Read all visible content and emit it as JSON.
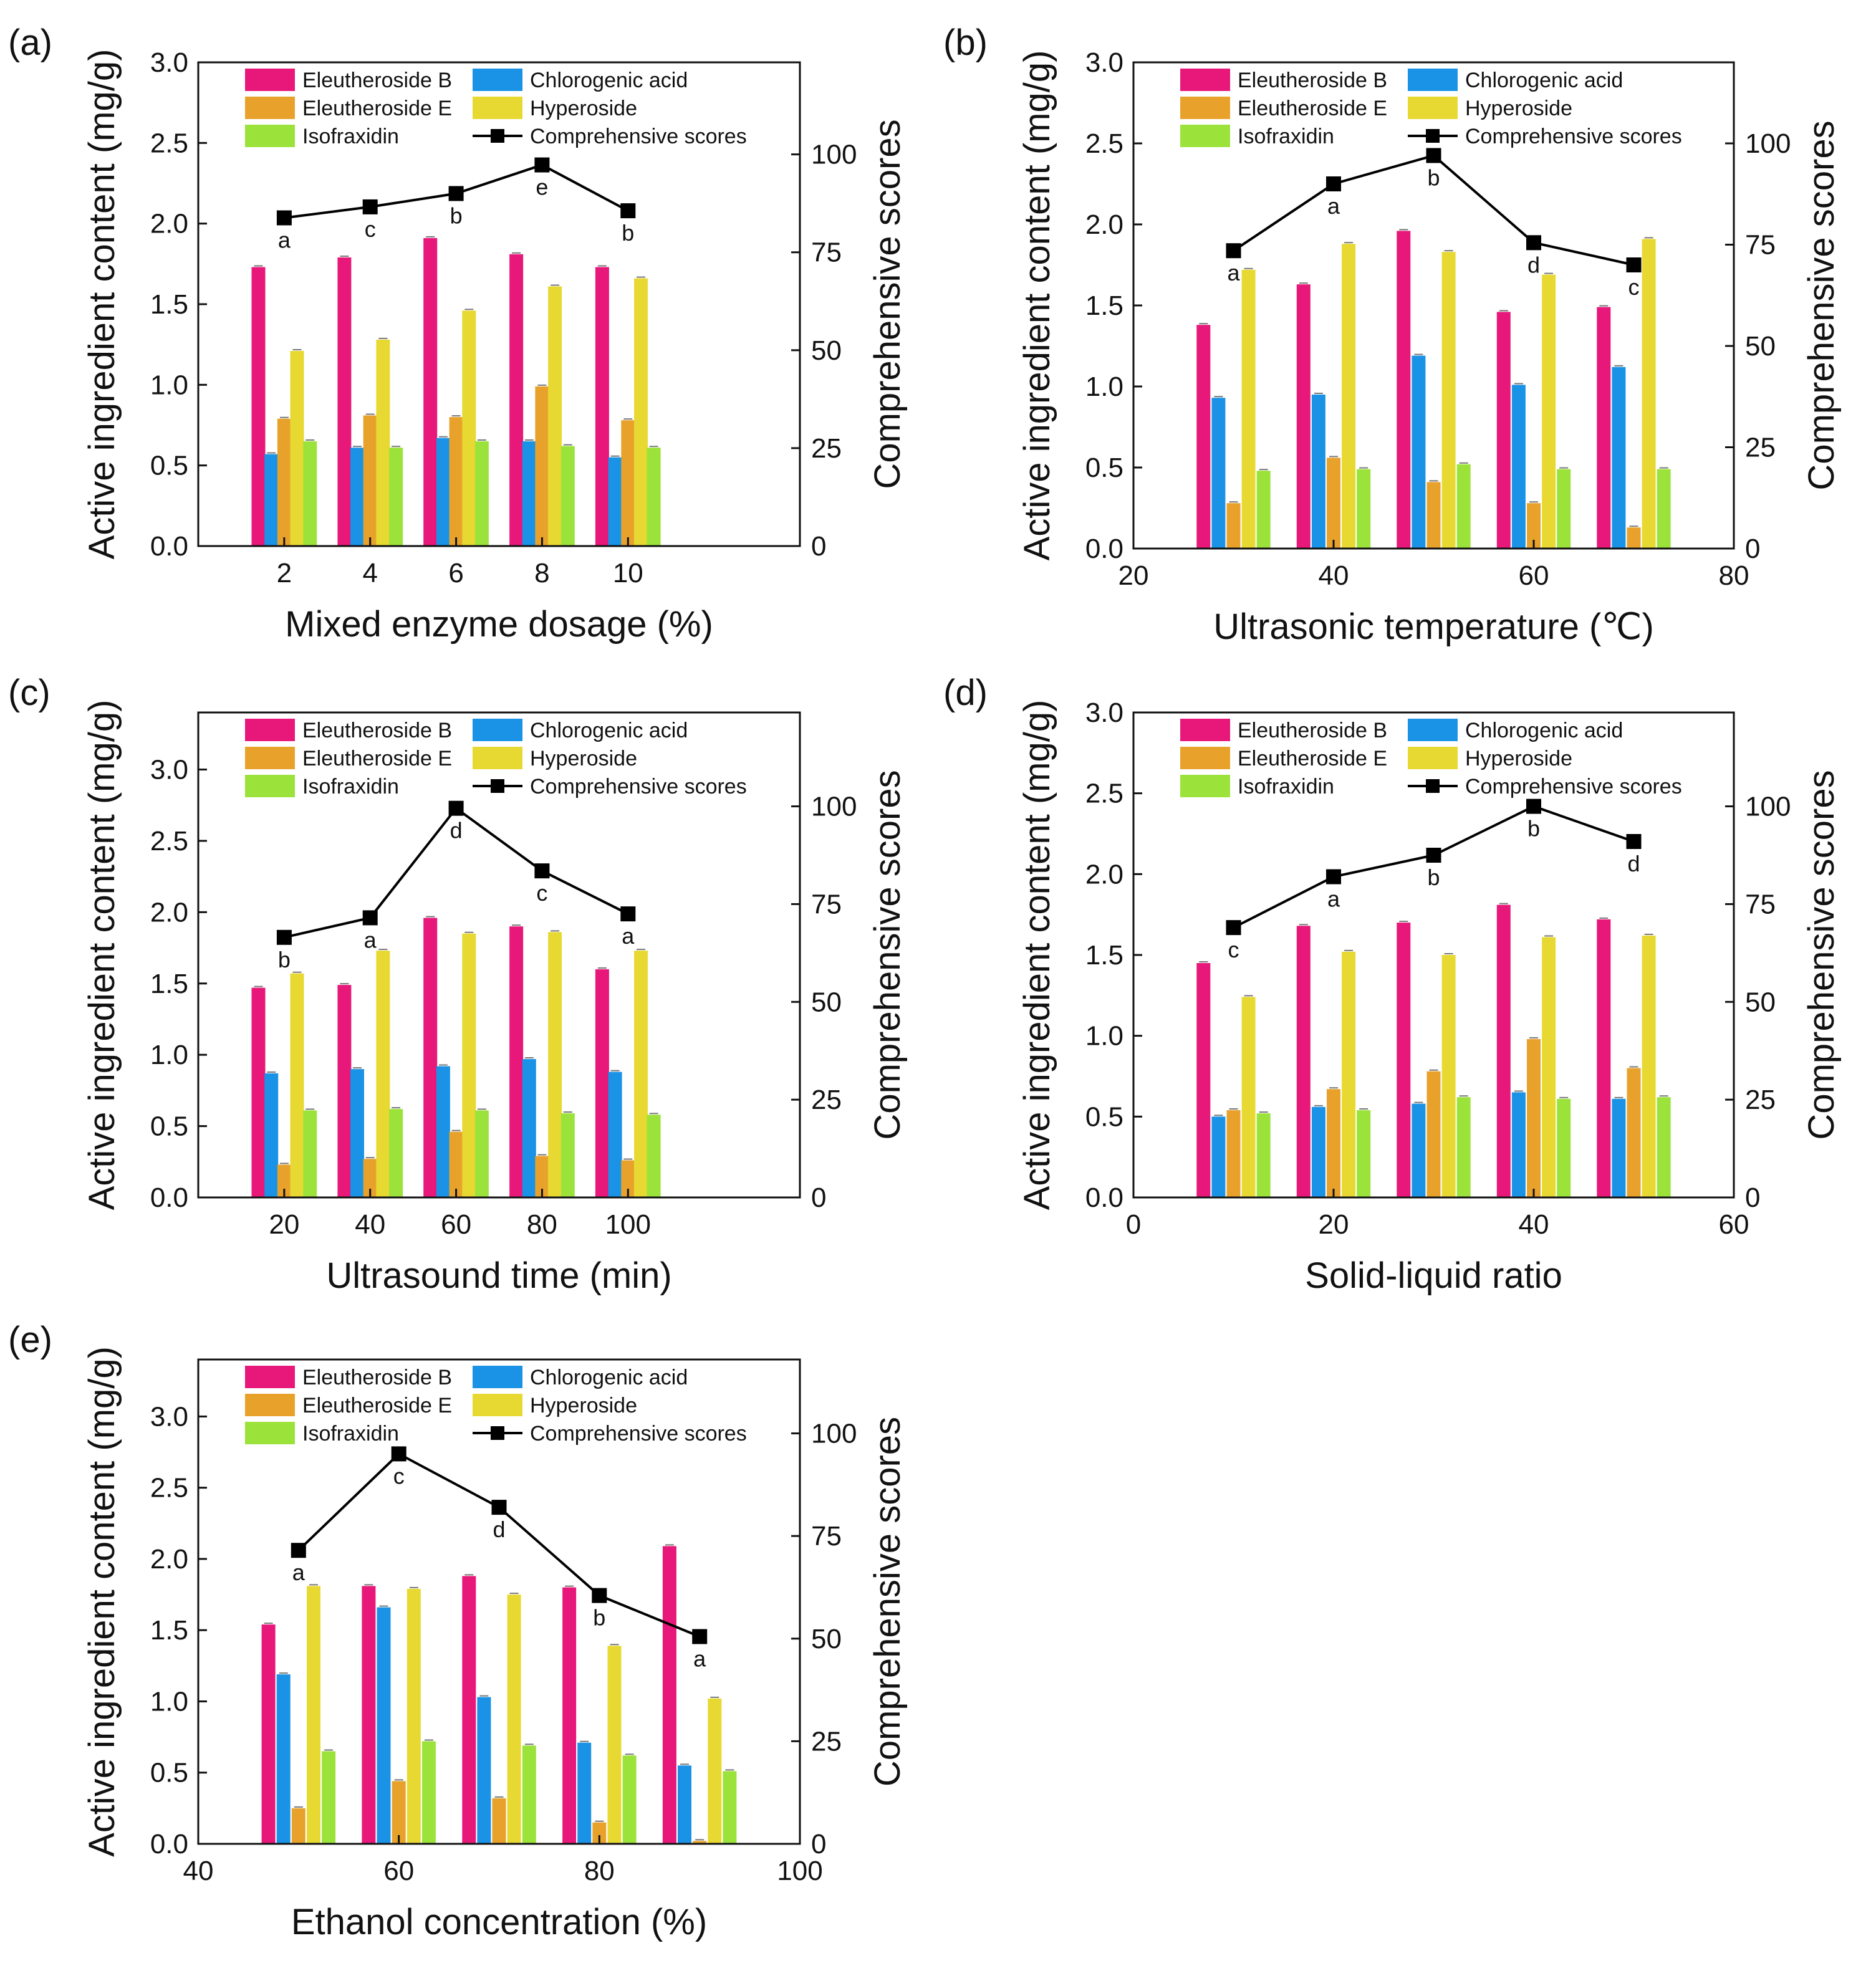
{
  "figure": {
    "colors": {
      "Eleutheroside B": "#e8177a",
      "Eleutheroside E": "#e8a22c",
      "Isofraxidin": "#9be33a",
      "Chlorogenic acid": "#1a93e6",
      "Hyperoside": "#e8d932",
      "Comprehensive scores": "#000000"
    }
  },
  "chart_data": [
    {
      "panel": "(a)",
      "type": "bar",
      "xlabel": "Mixed enzyme dosage (%)",
      "ylabel": "Active ingredient content (mg/g)",
      "y2label": "Comprehensive scores",
      "xlim": [
        0,
        14
      ],
      "xticks": [
        2,
        4,
        6,
        8,
        10
      ],
      "xtick_labels": [
        "2",
        "4",
        "6",
        "8",
        "10"
      ],
      "ylim": [
        0,
        3.0
      ],
      "yticks": [
        0.0,
        0.5,
        1.0,
        1.5,
        2.0,
        2.5,
        3.0
      ],
      "ytick_labels": [
        "0.0",
        "0.5",
        "1.0",
        "1.5",
        "2.0",
        "2.5",
        "3.0"
      ],
      "y2lim": [
        0,
        123.5
      ],
      "y2ticks": [
        0,
        25,
        50,
        75,
        100
      ],
      "y2tick_labels": [
        "0",
        "25",
        "50",
        "75",
        "100"
      ],
      "categories": [
        2,
        4,
        6,
        8,
        10
      ],
      "bar_offset": 0.3,
      "series": [
        {
          "name": "Eleutheroside B",
          "values": [
            1.73,
            1.79,
            1.91,
            1.81,
            1.73
          ]
        },
        {
          "name": "Chlorogenic acid",
          "values": [
            0.57,
            0.61,
            0.67,
            0.65,
            0.55
          ]
        },
        {
          "name": "Eleutheroside E",
          "values": [
            0.79,
            0.81,
            0.8,
            0.99,
            0.78
          ]
        },
        {
          "name": "Hyperoside",
          "values": [
            1.21,
            1.28,
            1.46,
            1.61,
            1.66
          ]
        },
        {
          "name": "Isofraxidin",
          "values": [
            0.65,
            0.61,
            0.65,
            0.62,
            0.61
          ]
        }
      ],
      "scores": [
        83.8,
        86.6,
        90.0,
        97.3,
        85.6
      ],
      "letters": [
        "a",
        "c",
        "b",
        "e",
        "b"
      ],
      "legend": [
        [
          "Eleutheroside B",
          "Chlorogenic acid"
        ],
        [
          "Eleutheroside E",
          "Hyperoside"
        ],
        [
          "Isofraxidin",
          "Comprehensive scores"
        ]
      ]
    },
    {
      "panel": "(b)",
      "type": "bar",
      "xlabel": "Ultrasonic temperature (℃)",
      "ylabel": "Active ingredient content (mg/g)",
      "y2label": "Comprehensive scores",
      "xlim": [
        20,
        80
      ],
      "xticks": [
        20,
        40,
        60,
        80
      ],
      "xtick_labels": [
        "20",
        "40",
        "60",
        "80"
      ],
      "ylim": [
        0,
        3.0
      ],
      "yticks": [
        0.0,
        0.5,
        1.0,
        1.5,
        2.0,
        2.5,
        3.0
      ],
      "ytick_labels": [
        "0.0",
        "0.5",
        "1.0",
        "1.5",
        "2.0",
        "2.5",
        "3.0"
      ],
      "y2lim": [
        0,
        120
      ],
      "y2ticks": [
        0,
        25,
        50,
        75,
        100
      ],
      "y2tick_labels": [
        "0",
        "25",
        "50",
        "75",
        "100"
      ],
      "categories": [
        30,
        40,
        50,
        60,
        70
      ],
      "bar_offset": 1.5,
      "series": [
        {
          "name": "Eleutheroside B",
          "values": [
            1.38,
            1.63,
            1.96,
            1.46,
            1.49
          ]
        },
        {
          "name": "Chlorogenic acid",
          "values": [
            0.93,
            0.95,
            1.19,
            1.01,
            1.12
          ]
        },
        {
          "name": "Eleutheroside E",
          "values": [
            0.28,
            0.56,
            0.41,
            0.28,
            0.13
          ]
        },
        {
          "name": "Hyperoside",
          "values": [
            1.72,
            1.88,
            1.83,
            1.69,
            1.91
          ]
        },
        {
          "name": "Isofraxidin",
          "values": [
            0.48,
            0.49,
            0.52,
            0.49,
            0.49
          ]
        }
      ],
      "scores": [
        73.5,
        90.0,
        97.0,
        75.5,
        70.0
      ],
      "letters": [
        "a",
        "a",
        "b",
        "d",
        "c"
      ],
      "legend": [
        [
          "Eleutheroside B",
          "Chlorogenic acid"
        ],
        [
          "Eleutheroside E",
          "Hyperoside"
        ],
        [
          "Isofraxidin",
          "Comprehensive scores"
        ]
      ]
    },
    {
      "panel": "(c)",
      "type": "bar",
      "xlabel": "Ultrasound time (min)",
      "ylabel": "Active ingredient content (mg/g)",
      "y2label": "Comprehensive scores",
      "xlim": [
        0,
        140
      ],
      "xticks": [
        20,
        40,
        60,
        80,
        100
      ],
      "xtick_labels": [
        "20",
        "40",
        "60",
        "80",
        "100"
      ],
      "ylim": [
        0,
        3.4
      ],
      "yticks": [
        0.0,
        0.5,
        1.0,
        1.5,
        2.0,
        2.5,
        3.0
      ],
      "ytick_labels": [
        "0.0",
        "0.5",
        "1.0",
        "1.5",
        "2.0",
        "2.5",
        "3.0"
      ],
      "y2lim": [
        0,
        124
      ],
      "y2ticks": [
        0,
        25,
        50,
        75,
        100
      ],
      "y2tick_labels": [
        "0",
        "25",
        "50",
        "75",
        "100"
      ],
      "categories": [
        20,
        40,
        60,
        80,
        100
      ],
      "bar_offset": 3,
      "series": [
        {
          "name": "Eleutheroside B",
          "values": [
            1.47,
            1.49,
            1.96,
            1.9,
            1.6
          ]
        },
        {
          "name": "Chlorogenic acid",
          "values": [
            0.87,
            0.9,
            0.92,
            0.97,
            0.88
          ]
        },
        {
          "name": "Eleutheroside E",
          "values": [
            0.23,
            0.27,
            0.46,
            0.29,
            0.26
          ]
        },
        {
          "name": "Hyperoside",
          "values": [
            1.57,
            1.73,
            1.85,
            1.86,
            1.73
          ]
        },
        {
          "name": "Isofraxidin",
          "values": [
            0.61,
            0.62,
            0.61,
            0.59,
            0.58
          ]
        }
      ],
      "scores": [
        66.5,
        71.5,
        99.5,
        83.5,
        72.5
      ],
      "letters": [
        "b",
        "a",
        "d",
        "c",
        "a"
      ],
      "legend": [
        [
          "Eleutheroside B",
          "Chlorogenic acid"
        ],
        [
          "Eleutheroside E",
          "Hyperoside"
        ],
        [
          "Isofraxidin",
          "Comprehensive scores"
        ]
      ]
    },
    {
      "panel": "(d)",
      "type": "bar",
      "xlabel": "Solid-liquid ratio",
      "ylabel": "Active ingredient content (mg/g)",
      "y2label": "Comprehensive scores",
      "xlim": [
        0,
        60
      ],
      "xticks": [
        0,
        20,
        40,
        60
      ],
      "xtick_labels": [
        "0",
        "20",
        "40",
        "60"
      ],
      "ylim": [
        0,
        3.0
      ],
      "yticks": [
        0.0,
        0.5,
        1.0,
        1.5,
        2.0,
        2.5,
        3.0
      ],
      "ytick_labels": [
        "0.0",
        "0.5",
        "1.0",
        "1.5",
        "2.0",
        "2.5",
        "3.0"
      ],
      "y2lim": [
        0,
        124
      ],
      "y2ticks": [
        0,
        25,
        50,
        75,
        100
      ],
      "y2tick_labels": [
        "0",
        "25",
        "50",
        "75",
        "100"
      ],
      "categories": [
        10,
        20,
        30,
        40,
        50
      ],
      "bar_offset": 1.5,
      "series": [
        {
          "name": "Eleutheroside B",
          "values": [
            1.45,
            1.68,
            1.7,
            1.81,
            1.72
          ]
        },
        {
          "name": "Chlorogenic acid",
          "values": [
            0.5,
            0.56,
            0.58,
            0.65,
            0.61
          ]
        },
        {
          "name": "Eleutheroside E",
          "values": [
            0.54,
            0.67,
            0.78,
            0.98,
            0.8
          ]
        },
        {
          "name": "Hyperoside",
          "values": [
            1.24,
            1.52,
            1.5,
            1.61,
            1.62
          ]
        },
        {
          "name": "Isofraxidin",
          "values": [
            0.52,
            0.54,
            0.62,
            0.61,
            0.62
          ]
        }
      ],
      "scores": [
        69.0,
        82.0,
        87.5,
        100.0,
        91.0
      ],
      "letters": [
        "c",
        "a",
        "b",
        "b",
        "d"
      ],
      "legend": [
        [
          "Eleutheroside B",
          "Chlorogenic acid"
        ],
        [
          "Eleutheroside E",
          "Hyperoside"
        ],
        [
          "Isofraxidin",
          "Comprehensive scores"
        ]
      ]
    },
    {
      "panel": "(e)",
      "type": "bar",
      "xlabel": "Ethanol concentration (%)",
      "ylabel": "Active ingredient content (mg/g)",
      "y2label": "Comprehensive scores",
      "xlim": [
        40,
        100
      ],
      "xticks": [
        40,
        60,
        80,
        100
      ],
      "xtick_labels": [
        "40",
        "60",
        "80",
        "100"
      ],
      "ylim": [
        0,
        3.4
      ],
      "yticks": [
        0.0,
        0.5,
        1.0,
        1.5,
        2.0,
        2.5,
        3.0
      ],
      "ytick_labels": [
        "0.0",
        "0.5",
        "1.0",
        "1.5",
        "2.0",
        "2.5",
        "3.0"
      ],
      "y2lim": [
        0,
        118
      ],
      "y2ticks": [
        0,
        25,
        50,
        75,
        100
      ],
      "y2tick_labels": [
        "0",
        "25",
        "50",
        "75",
        "100"
      ],
      "categories": [
        50,
        60,
        70,
        80,
        90
      ],
      "bar_offset": 1.5,
      "series": [
        {
          "name": "Eleutheroside B",
          "values": [
            1.54,
            1.81,
            1.88,
            1.8,
            2.09
          ]
        },
        {
          "name": "Chlorogenic acid",
          "values": [
            1.19,
            1.66,
            1.03,
            0.71,
            0.55
          ]
        },
        {
          "name": "Eleutheroside E",
          "values": [
            0.25,
            0.44,
            0.32,
            0.15,
            0.02
          ]
        },
        {
          "name": "Hyperoside",
          "values": [
            1.81,
            1.79,
            1.75,
            1.39,
            1.02
          ]
        },
        {
          "name": "Isofraxidin",
          "values": [
            0.65,
            0.72,
            0.69,
            0.62,
            0.51
          ]
        }
      ],
      "scores": [
        71.5,
        95.0,
        82.0,
        60.5,
        50.5
      ],
      "letters": [
        "a",
        "c",
        "d",
        "b",
        "a"
      ],
      "legend": [
        [
          "Eleutheroside B",
          "Chlorogenic acid"
        ],
        [
          "Eleutheroside E",
          "Hyperoside"
        ],
        [
          "Isofraxidin",
          "Comprehensive scores"
        ]
      ]
    }
  ]
}
